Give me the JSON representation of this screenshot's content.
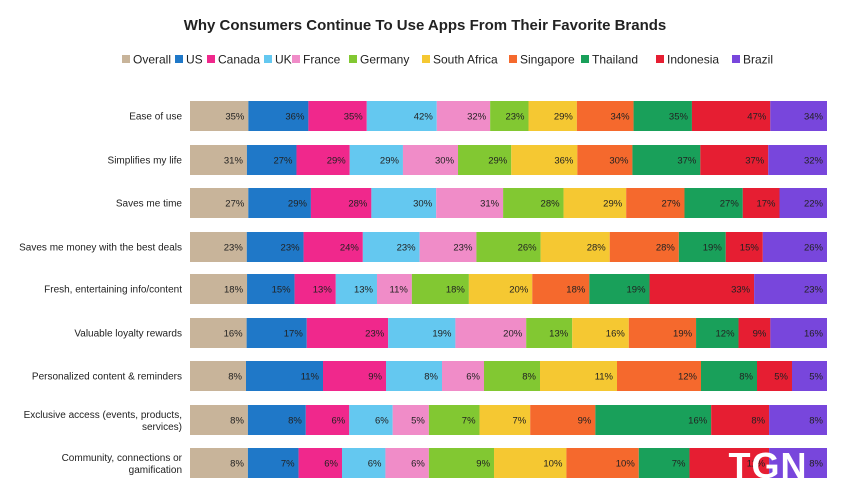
{
  "chart_data": {
    "type": "bar",
    "orientation": "horizontal",
    "stacked": "100%",
    "title": "Why Consumers Continue To Use Apps From Their Favorite Brands",
    "legend_position": "top",
    "grid": false,
    "categories": [
      [
        "Ease of use"
      ],
      [
        "Simplifies my life"
      ],
      [
        "Saves me time"
      ],
      [
        "Saves me money with the best deals"
      ],
      [
        "Fresh, entertaining info/content"
      ],
      [
        "Valuable loyalty rewards"
      ],
      [
        "Personalized content & reminders"
      ],
      [
        "Exclusive access (events, products,",
        "services)"
      ],
      [
        "Community, connections or",
        "gamification"
      ]
    ],
    "series": [
      {
        "name": "Overall",
        "color": "#c8b49a",
        "values": [
          35,
          31,
          27,
          23,
          18,
          16,
          8,
          8,
          8
        ]
      },
      {
        "name": "US",
        "color": "#1f78c8",
        "values": [
          36,
          27,
          29,
          23,
          15,
          17,
          11,
          8,
          7
        ]
      },
      {
        "name": "Canada",
        "color": "#f0288c",
        "values": [
          35,
          29,
          28,
          24,
          13,
          23,
          9,
          6,
          6
        ]
      },
      {
        "name": "UK",
        "color": "#64c8f0",
        "values": [
          42,
          29,
          30,
          23,
          13,
          19,
          8,
          6,
          6
        ]
      },
      {
        "name": "France",
        "color": "#f08cc8",
        "values": [
          32,
          30,
          31,
          23,
          11,
          20,
          6,
          5,
          6
        ]
      },
      {
        "name": "Germany",
        "color": "#82c832",
        "values": [
          23,
          29,
          28,
          26,
          18,
          13,
          8,
          7,
          9
        ]
      },
      {
        "name": "South Africa",
        "color": "#f5c832",
        "values": [
          29,
          36,
          29,
          28,
          20,
          16,
          11,
          7,
          10
        ]
      },
      {
        "name": "Singapore",
        "color": "#f5692d",
        "values": [
          34,
          30,
          27,
          28,
          18,
          19,
          12,
          9,
          10
        ]
      },
      {
        "name": "Thailand",
        "color": "#19a05a",
        "values": [
          35,
          37,
          27,
          19,
          19,
          12,
          8,
          16,
          7
        ]
      },
      {
        "name": "Indonesia",
        "color": "#e61e32",
        "values": [
          47,
          37,
          17,
          15,
          33,
          9,
          5,
          8,
          11
        ]
      },
      {
        "name": "Brazil",
        "color": "#7846dc",
        "values": [
          34,
          32,
          22,
          26,
          23,
          16,
          5,
          8,
          8
        ]
      }
    ],
    "value_suffix": "%"
  },
  "watermark": {
    "text": "TGN"
  }
}
